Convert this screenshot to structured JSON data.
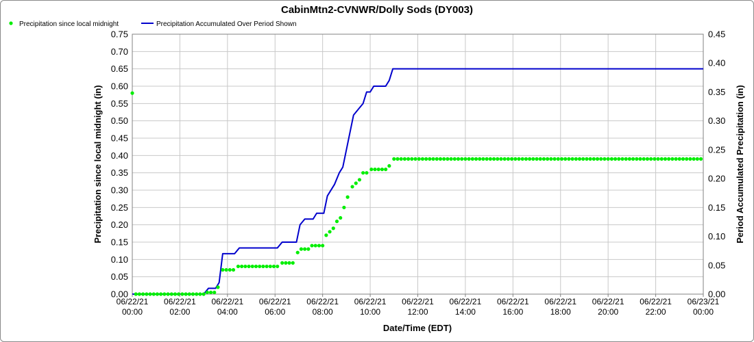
{
  "chart_data": {
    "type": "line",
    "title": "CabinMtn2-CVNWR/Dolly Sods (DY003)",
    "xlabel": "Date/Time (EDT)",
    "ylabel_left": "Precipitation since local midnight (in)",
    "ylabel_right": "Period Accumulated Precipitation (in)",
    "xlim": [
      0,
      24
    ],
    "ylim_left": [
      0,
      0.75
    ],
    "ylim_right": [
      0,
      0.45
    ],
    "grid": true,
    "legend_position": "top-left",
    "x_tick_labels": [
      [
        "06/22/21",
        "00:00"
      ],
      [
        "06/22/21",
        "02:00"
      ],
      [
        "06/22/21",
        "04:00"
      ],
      [
        "06/22/21",
        "06:00"
      ],
      [
        "06/22/21",
        "08:00"
      ],
      [
        "06/22/21",
        "10:00"
      ],
      [
        "06/22/21",
        "12:00"
      ],
      [
        "06/22/21",
        "14:00"
      ],
      [
        "06/22/21",
        "16:00"
      ],
      [
        "06/22/21",
        "18:00"
      ],
      [
        "06/22/21",
        "20:00"
      ],
      [
        "06/22/21",
        "22:00"
      ],
      [
        "06/23/21",
        "00:00"
      ]
    ],
    "y_left_tick_labels": [
      "0.00",
      "0.05",
      "0.10",
      "0.15",
      "0.20",
      "0.25",
      "0.30",
      "0.35",
      "0.40",
      "0.45",
      "0.50",
      "0.55",
      "0.60",
      "0.65",
      "0.70",
      "0.75"
    ],
    "y_right_tick_labels": [
      "0.00",
      "0.05",
      "0.10",
      "0.15",
      "0.20",
      "0.25",
      "0.30",
      "0.35",
      "0.40",
      "0.45"
    ],
    "series": [
      {
        "name": "Precipitation since local midnight",
        "axis": "left",
        "style": "points",
        "color": "#00ee00",
        "points": [
          [
            0.0,
            0.58
          ],
          [
            0.15,
            0
          ],
          [
            0.3,
            0
          ],
          [
            0.45,
            0
          ],
          [
            0.6,
            0
          ],
          [
            0.75,
            0
          ],
          [
            0.9,
            0
          ],
          [
            1.05,
            0
          ],
          [
            1.2,
            0
          ],
          [
            1.35,
            0
          ],
          [
            1.5,
            0
          ],
          [
            1.65,
            0
          ],
          [
            1.8,
            0
          ],
          [
            1.95,
            0
          ],
          [
            2.1,
            0
          ],
          [
            2.25,
            0
          ],
          [
            2.4,
            0
          ],
          [
            2.55,
            0
          ],
          [
            2.7,
            0
          ],
          [
            2.85,
            0
          ],
          [
            3.0,
            0
          ],
          [
            3.15,
            0.005
          ],
          [
            3.3,
            0.005
          ],
          [
            3.45,
            0.005
          ],
          [
            3.6,
            0.02
          ],
          [
            3.8,
            0.07
          ],
          [
            3.95,
            0.07
          ],
          [
            4.1,
            0.07
          ],
          [
            4.25,
            0.07
          ],
          [
            4.45,
            0.08
          ],
          [
            4.6,
            0.08
          ],
          [
            4.75,
            0.08
          ],
          [
            4.9,
            0.08
          ],
          [
            5.05,
            0.08
          ],
          [
            5.2,
            0.08
          ],
          [
            5.35,
            0.08
          ],
          [
            5.5,
            0.08
          ],
          [
            5.65,
            0.08
          ],
          [
            5.8,
            0.08
          ],
          [
            5.95,
            0.08
          ],
          [
            6.1,
            0.08
          ],
          [
            6.3,
            0.09
          ],
          [
            6.45,
            0.09
          ],
          [
            6.6,
            0.09
          ],
          [
            6.75,
            0.09
          ],
          [
            6.95,
            0.12
          ],
          [
            7.1,
            0.13
          ],
          [
            7.25,
            0.13
          ],
          [
            7.4,
            0.13
          ],
          [
            7.55,
            0.14
          ],
          [
            7.7,
            0.14
          ],
          [
            7.85,
            0.14
          ],
          [
            8.0,
            0.14
          ],
          [
            8.15,
            0.17
          ],
          [
            8.3,
            0.18
          ],
          [
            8.45,
            0.19
          ],
          [
            8.6,
            0.21
          ],
          [
            8.75,
            0.22
          ],
          [
            8.9,
            0.25
          ],
          [
            9.05,
            0.28
          ],
          [
            9.25,
            0.31
          ],
          [
            9.4,
            0.32
          ],
          [
            9.55,
            0.33
          ],
          [
            9.7,
            0.35
          ],
          [
            9.85,
            0.35
          ],
          [
            10.05,
            0.36
          ],
          [
            10.2,
            0.36
          ],
          [
            10.35,
            0.36
          ],
          [
            10.5,
            0.36
          ],
          [
            10.65,
            0.36
          ],
          [
            10.8,
            0.37
          ],
          [
            11.0,
            0.39
          ],
          [
            11.15,
            0.39
          ],
          [
            11.3,
            0.39
          ],
          [
            11.45,
            0.39
          ],
          [
            11.6,
            0.39
          ],
          [
            11.75,
            0.39
          ],
          [
            11.9,
            0.39
          ],
          [
            12.05,
            0.39
          ],
          [
            12.2,
            0.39
          ],
          [
            12.35,
            0.39
          ],
          [
            12.5,
            0.39
          ],
          [
            12.65,
            0.39
          ],
          [
            12.8,
            0.39
          ],
          [
            12.95,
            0.39
          ],
          [
            13.1,
            0.39
          ],
          [
            13.25,
            0.39
          ],
          [
            13.4,
            0.39
          ],
          [
            13.55,
            0.39
          ],
          [
            13.7,
            0.39
          ],
          [
            13.85,
            0.39
          ],
          [
            14.0,
            0.39
          ],
          [
            14.15,
            0.39
          ],
          [
            14.3,
            0.39
          ],
          [
            14.45,
            0.39
          ],
          [
            14.6,
            0.39
          ],
          [
            14.75,
            0.39
          ],
          [
            14.9,
            0.39
          ],
          [
            15.05,
            0.39
          ],
          [
            15.2,
            0.39
          ],
          [
            15.35,
            0.39
          ],
          [
            15.5,
            0.39
          ],
          [
            15.65,
            0.39
          ],
          [
            15.8,
            0.39
          ],
          [
            15.95,
            0.39
          ],
          [
            16.1,
            0.39
          ],
          [
            16.25,
            0.39
          ],
          [
            16.4,
            0.39
          ],
          [
            16.55,
            0.39
          ],
          [
            16.7,
            0.39
          ],
          [
            16.85,
            0.39
          ],
          [
            17.0,
            0.39
          ],
          [
            17.15,
            0.39
          ],
          [
            17.3,
            0.39
          ],
          [
            17.45,
            0.39
          ],
          [
            17.6,
            0.39
          ],
          [
            17.75,
            0.39
          ],
          [
            17.9,
            0.39
          ],
          [
            18.05,
            0.39
          ],
          [
            18.2,
            0.39
          ],
          [
            18.35,
            0.39
          ],
          [
            18.5,
            0.39
          ],
          [
            18.65,
            0.39
          ],
          [
            18.8,
            0.39
          ],
          [
            18.95,
            0.39
          ],
          [
            19.1,
            0.39
          ],
          [
            19.25,
            0.39
          ],
          [
            19.4,
            0.39
          ],
          [
            19.55,
            0.39
          ],
          [
            19.7,
            0.39
          ],
          [
            19.85,
            0.39
          ],
          [
            20.0,
            0.39
          ],
          [
            20.15,
            0.39
          ],
          [
            20.3,
            0.39
          ],
          [
            20.45,
            0.39
          ],
          [
            20.6,
            0.39
          ],
          [
            20.75,
            0.39
          ],
          [
            20.9,
            0.39
          ],
          [
            21.05,
            0.39
          ],
          [
            21.2,
            0.39
          ],
          [
            21.35,
            0.39
          ],
          [
            21.5,
            0.39
          ],
          [
            21.65,
            0.39
          ],
          [
            21.8,
            0.39
          ],
          [
            21.95,
            0.39
          ],
          [
            22.1,
            0.39
          ],
          [
            22.25,
            0.39
          ],
          [
            22.4,
            0.39
          ],
          [
            22.55,
            0.39
          ],
          [
            22.7,
            0.39
          ],
          [
            22.85,
            0.39
          ],
          [
            23.0,
            0.39
          ],
          [
            23.15,
            0.39
          ],
          [
            23.3,
            0.39
          ],
          [
            23.45,
            0.39
          ],
          [
            23.6,
            0.39
          ],
          [
            23.75,
            0.39
          ],
          [
            23.9,
            0.39
          ]
        ]
      },
      {
        "name": "Precipitation Accumulated Over Period Shown",
        "axis": "right",
        "style": "line",
        "color": "#0000cc",
        "points": [
          [
            0,
            0
          ],
          [
            3.0,
            0
          ],
          [
            3.2,
            0.01
          ],
          [
            3.5,
            0.01
          ],
          [
            3.65,
            0.02
          ],
          [
            3.8,
            0.07
          ],
          [
            4.3,
            0.07
          ],
          [
            4.5,
            0.08
          ],
          [
            6.1,
            0.08
          ],
          [
            6.3,
            0.09
          ],
          [
            6.9,
            0.09
          ],
          [
            7.05,
            0.12
          ],
          [
            7.25,
            0.13
          ],
          [
            7.6,
            0.13
          ],
          [
            7.75,
            0.14
          ],
          [
            8.05,
            0.14
          ],
          [
            8.2,
            0.17
          ],
          [
            8.5,
            0.19
          ],
          [
            8.7,
            0.21
          ],
          [
            8.85,
            0.22
          ],
          [
            9.05,
            0.26
          ],
          [
            9.3,
            0.31
          ],
          [
            9.5,
            0.32
          ],
          [
            9.7,
            0.33
          ],
          [
            9.85,
            0.35
          ],
          [
            10.0,
            0.35
          ],
          [
            10.15,
            0.36
          ],
          [
            10.65,
            0.36
          ],
          [
            10.8,
            0.37
          ],
          [
            10.95,
            0.39
          ],
          [
            24,
            0.39
          ]
        ]
      }
    ]
  }
}
